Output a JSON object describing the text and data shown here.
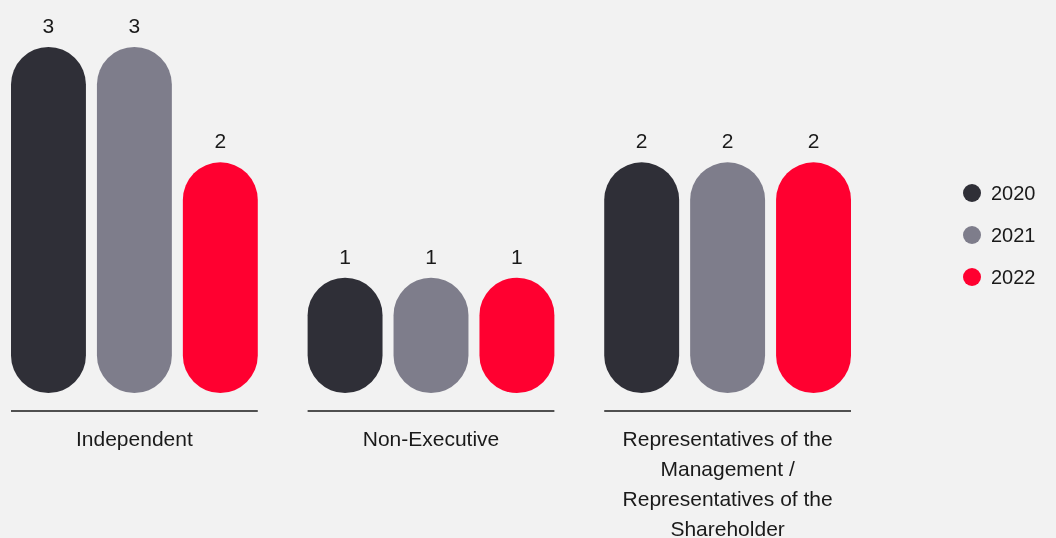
{
  "chart_data": {
    "type": "bar",
    "categories": [
      "Independent",
      "Non-Executive",
      "Representatives of the Management / Representatives of the Shareholder"
    ],
    "series": [
      {
        "name": "2020",
        "color": "#2f2f37",
        "values": [
          3,
          1,
          2
        ]
      },
      {
        "name": "2021",
        "color": "#7e7d8b",
        "values": [
          3,
          1,
          2
        ]
      },
      {
        "name": "2022",
        "color": "#ff0030",
        "values": [
          2,
          1,
          2
        ]
      }
    ],
    "data_labels": true,
    "legend": "right"
  }
}
